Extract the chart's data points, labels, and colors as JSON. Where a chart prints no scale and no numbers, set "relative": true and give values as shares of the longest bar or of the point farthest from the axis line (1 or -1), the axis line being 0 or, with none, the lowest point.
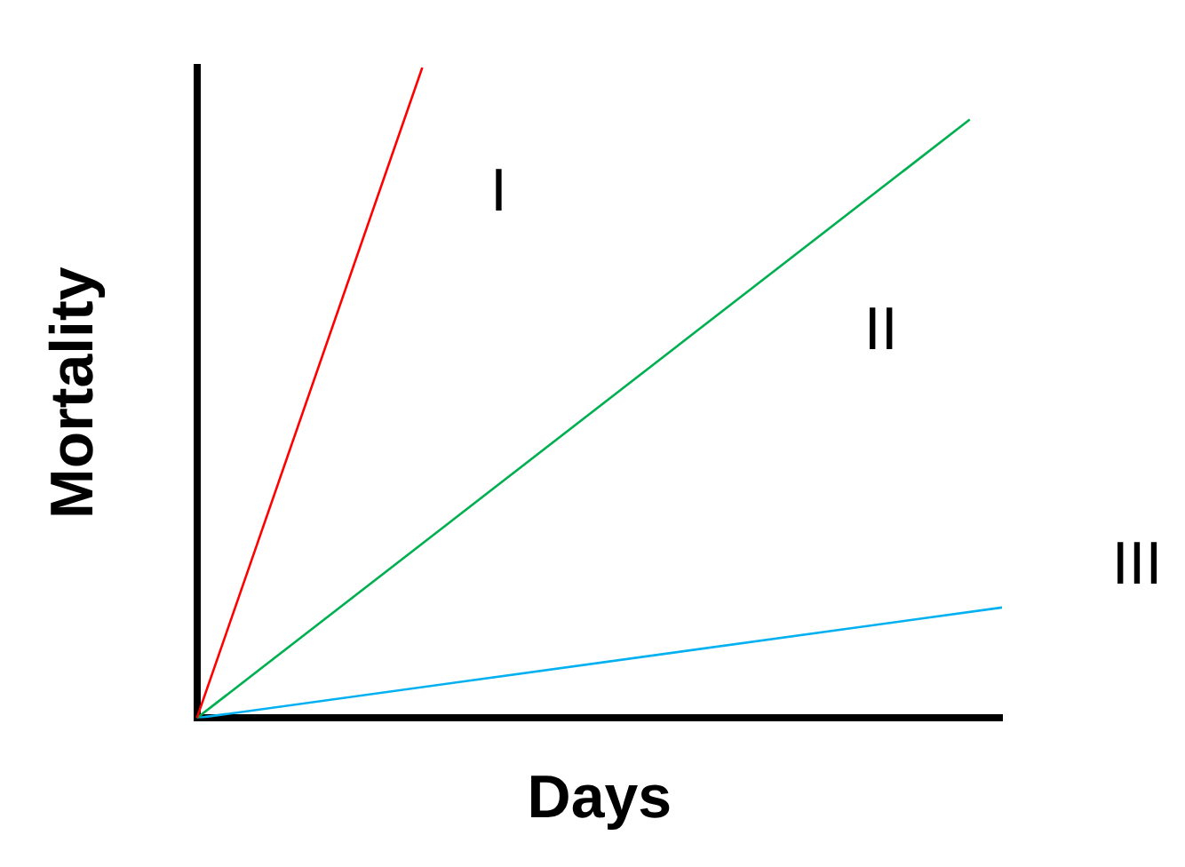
{
  "chart_data": {
    "type": "line",
    "relative": true,
    "xlabel": "Days",
    "ylabel": "Mortality",
    "grid": false,
    "legend": false,
    "marker": "none",
    "line_style": "solid",
    "categories": [
      null,
      null,
      null,
      null,
      null,
      null,
      null,
      null,
      null,
      null,
      null,
      null,
      null,
      null,
      null,
      null,
      null,
      null,
      null,
      null,
      null,
      null,
      null,
      null,
      null,
      null
    ],
    "series": [
      {
        "name": "I",
        "color": "#ff0000",
        "values": [
          0,
          null,
          null,
          null,
          null,
          null,
          null,
          1,
          null,
          null,
          null,
          null,
          null,
          null,
          null,
          null,
          null,
          null,
          null,
          null,
          null,
          null,
          null,
          null,
          null,
          null
        ]
      },
      {
        "name": "II",
        "color": "#00b050",
        "values": [
          0,
          null,
          null,
          null,
          null,
          null,
          null,
          null,
          null,
          null,
          null,
          null,
          null,
          null,
          null,
          null,
          null,
          null,
          null,
          null,
          null,
          null,
          null,
          null,
          0.92,
          null
        ]
      },
      {
        "name": "III",
        "color": "#00b0f0",
        "values": [
          0,
          null,
          null,
          null,
          null,
          null,
          null,
          null,
          null,
          null,
          null,
          null,
          null,
          null,
          null,
          null,
          null,
          null,
          null,
          null,
          null,
          null,
          null,
          null,
          null,
          0.17
        ]
      }
    ]
  }
}
